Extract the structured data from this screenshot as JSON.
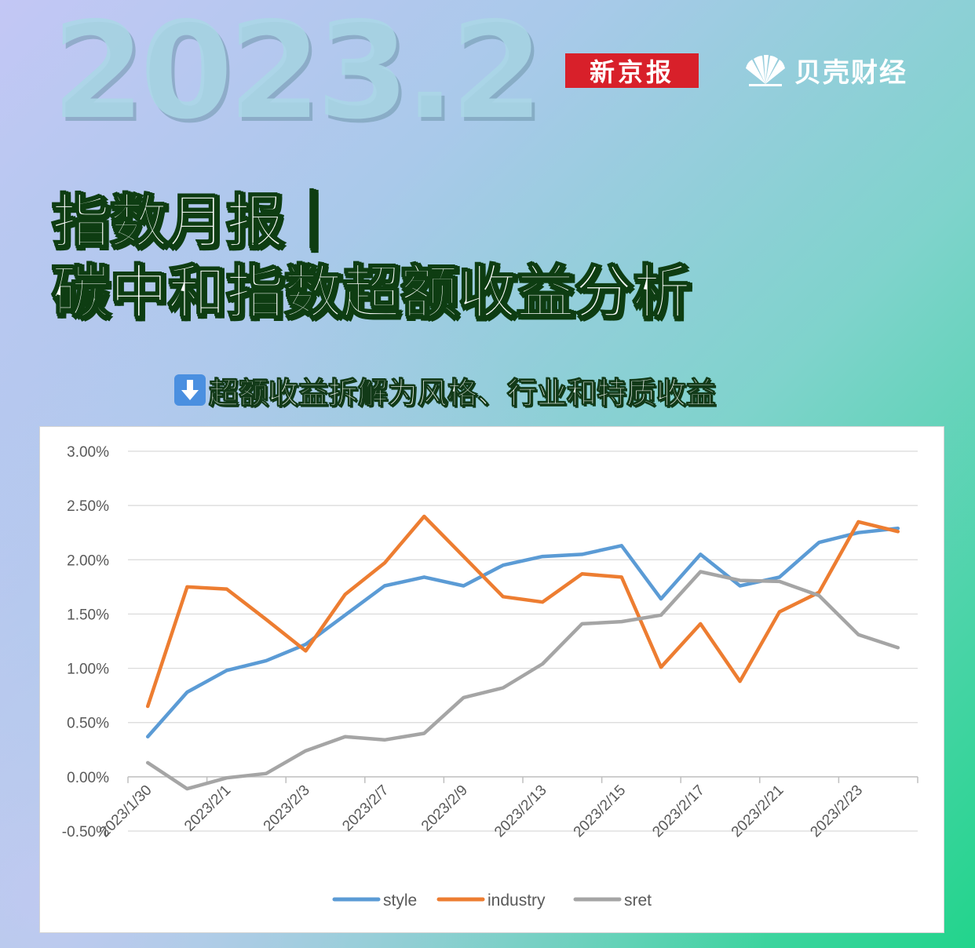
{
  "header": {
    "year": "2023.2",
    "brand_xjb": "新京报",
    "brand_bk": "贝壳财经"
  },
  "title": {
    "line1": "指数月报｜",
    "line2": "碳中和指数超额收益分析"
  },
  "subtitle": {
    "icon": "down-arrow-icon",
    "text": "超额收益拆解为风格、行业和特质收益"
  },
  "colors": {
    "style": "#5b9bd5",
    "industry": "#ed7d31",
    "sret": "#a5a5a5"
  },
  "chart_data": {
    "type": "line",
    "title": "",
    "xlabel": "",
    "ylabel": "",
    "ylim": [
      -0.005,
      0.03
    ],
    "yticks": [
      "3.00%",
      "2.50%",
      "2.00%",
      "1.50%",
      "1.00%",
      "0.50%",
      "0.00%",
      "-0.50%"
    ],
    "ytick_values": [
      0.03,
      0.025,
      0.02,
      0.015,
      0.01,
      0.005,
      0.0,
      -0.005
    ],
    "x": [
      "2023/1/30",
      "2023/1/31",
      "2023/2/1",
      "2023/2/2",
      "2023/2/3",
      "2023/2/6",
      "2023/2/7",
      "2023/2/8",
      "2023/2/9",
      "2023/2/10",
      "2023/2/13",
      "2023/2/14",
      "2023/2/15",
      "2023/2/16",
      "2023/2/17",
      "2023/2/20",
      "2023/2/21",
      "2023/2/22",
      "2023/2/23",
      "2023/2/24"
    ],
    "xtick_labels": [
      "2023/1/30",
      "2023/2/1",
      "2023/2/3",
      "2023/2/7",
      "2023/2/9",
      "2023/2/13",
      "2023/2/15",
      "2023/2/17",
      "2023/2/21",
      "2023/2/23"
    ],
    "grid": true,
    "legend": "bottom",
    "series": [
      {
        "name": "style",
        "values": [
          0.0037,
          0.0078,
          0.0098,
          0.0107,
          0.0122,
          0.0149,
          0.0176,
          0.0184,
          0.0176,
          0.0195,
          0.0203,
          0.0205,
          0.0213,
          0.0164,
          0.0205,
          0.0176,
          0.0184,
          0.0216,
          0.0225,
          0.0229
        ]
      },
      {
        "name": "industry",
        "values": [
          0.0065,
          0.0175,
          0.0173,
          0.0145,
          0.0116,
          0.0168,
          0.0197,
          0.024,
          0.0203,
          0.0166,
          0.0161,
          0.0187,
          0.0184,
          0.0101,
          0.0141,
          0.0088,
          0.0152,
          0.017,
          0.0235,
          0.0226
        ]
      },
      {
        "name": "sret",
        "values": [
          0.0013,
          -0.0011,
          -0.0001,
          0.0003,
          0.0024,
          0.0037,
          0.0034,
          0.004,
          0.0073,
          0.0082,
          0.0104,
          0.0141,
          0.0143,
          0.0149,
          0.0189,
          0.0181,
          0.018,
          0.0167,
          0.0131,
          0.0119
        ]
      }
    ]
  }
}
